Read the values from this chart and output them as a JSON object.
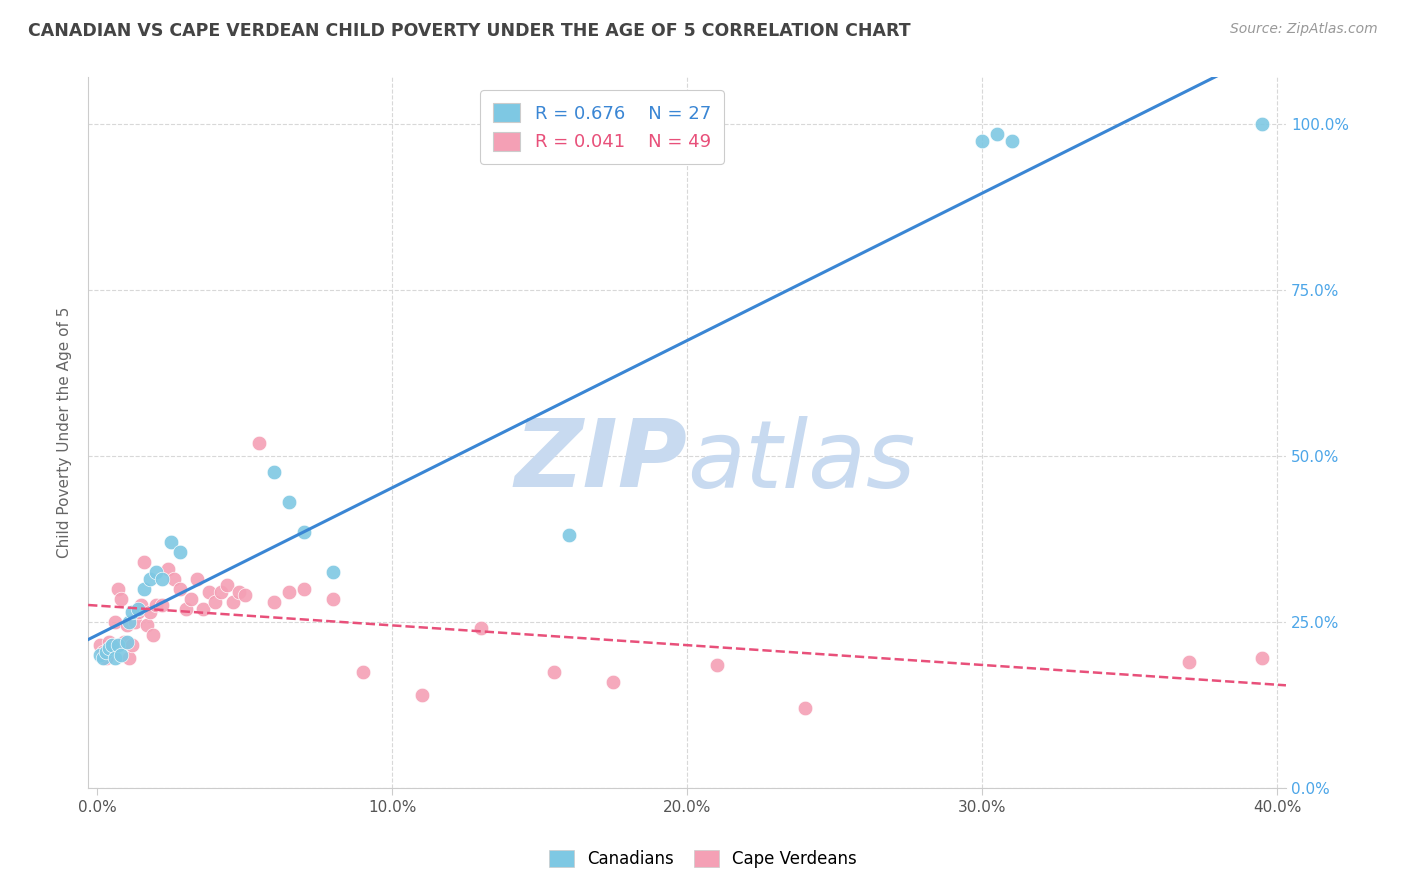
{
  "title": "CANADIAN VS CAPE VERDEAN CHILD POVERTY UNDER THE AGE OF 5 CORRELATION CHART",
  "source": "Source: ZipAtlas.com",
  "ylabel": "Child Poverty Under the Age of 5",
  "xlabel_ticks": [
    "0.0%",
    "",
    "",
    "",
    "",
    "10.0%",
    "",
    "",
    "",
    "",
    "20.0%",
    "",
    "",
    "",
    "",
    "30.0%",
    "",
    "",
    "",
    "",
    "40.0%"
  ],
  "xlabel_vals": [
    0.0,
    0.02,
    0.04,
    0.06,
    0.08,
    0.1,
    0.12,
    0.14,
    0.16,
    0.18,
    0.2,
    0.22,
    0.24,
    0.26,
    0.28,
    0.3,
    0.32,
    0.34,
    0.36,
    0.38,
    0.4
  ],
  "xlabel_major_ticks": [
    0.0,
    0.1,
    0.2,
    0.3,
    0.4
  ],
  "xlabel_major_labels": [
    "0.0%",
    "10.0%",
    "20.0%",
    "30.0%",
    "40.0%"
  ],
  "ylabel_ticks_right": [
    0.0,
    0.25,
    0.5,
    0.75,
    1.0
  ],
  "ylabel_labels_right": [
    "0.0%",
    "25.0%",
    "50.0%",
    "75.0%",
    "100.0%"
  ],
  "xlim": [
    -0.003,
    0.403
  ],
  "ylim": [
    0.1,
    1.07
  ],
  "canadians": {
    "R": 0.676,
    "N": 27,
    "color": "#7ec8e3",
    "x": [
      0.001,
      0.002,
      0.003,
      0.004,
      0.005,
      0.006,
      0.007,
      0.008,
      0.01,
      0.011,
      0.012,
      0.014,
      0.016,
      0.018,
      0.02,
      0.022,
      0.025,
      0.028,
      0.06,
      0.065,
      0.07,
      0.08,
      0.16,
      0.3,
      0.305,
      0.31,
      0.395
    ],
    "y": [
      0.2,
      0.195,
      0.205,
      0.21,
      0.215,
      0.195,
      0.215,
      0.2,
      0.22,
      0.25,
      0.265,
      0.27,
      0.3,
      0.315,
      0.325,
      0.315,
      0.37,
      0.355,
      0.475,
      0.43,
      0.385,
      0.325,
      0.38,
      0.975,
      0.985,
      0.975,
      1.0
    ]
  },
  "cape_verdeans": {
    "R": 0.041,
    "N": 49,
    "color": "#f4a0b5",
    "x": [
      0.001,
      0.002,
      0.003,
      0.004,
      0.005,
      0.006,
      0.007,
      0.008,
      0.009,
      0.01,
      0.011,
      0.012,
      0.013,
      0.014,
      0.015,
      0.016,
      0.017,
      0.018,
      0.019,
      0.02,
      0.022,
      0.024,
      0.026,
      0.028,
      0.03,
      0.032,
      0.034,
      0.036,
      0.038,
      0.04,
      0.042,
      0.044,
      0.046,
      0.048,
      0.05,
      0.055,
      0.06,
      0.065,
      0.07,
      0.08,
      0.09,
      0.11,
      0.13,
      0.155,
      0.175,
      0.21,
      0.24,
      0.37,
      0.395
    ],
    "y": [
      0.215,
      0.205,
      0.195,
      0.22,
      0.215,
      0.25,
      0.3,
      0.285,
      0.22,
      0.245,
      0.195,
      0.215,
      0.25,
      0.265,
      0.275,
      0.34,
      0.245,
      0.265,
      0.23,
      0.275,
      0.275,
      0.33,
      0.315,
      0.3,
      0.27,
      0.285,
      0.315,
      0.27,
      0.295,
      0.28,
      0.295,
      0.305,
      0.28,
      0.295,
      0.29,
      0.52,
      0.28,
      0.295,
      0.3,
      0.285,
      0.175,
      0.14,
      0.24,
      0.175,
      0.16,
      0.185,
      0.12,
      0.19,
      0.195
    ]
  },
  "blue_line_color": "#3a86d4",
  "pink_line_color": "#e8507a",
  "grid_color": "#d8d8d8",
  "watermark_zip_color": "#c8daf0",
  "watermark_atlas_color": "#c8daf0",
  "background_color": "#ffffff",
  "right_axis_color": "#4da6e8",
  "title_color": "#444444",
  "source_color": "#999999"
}
